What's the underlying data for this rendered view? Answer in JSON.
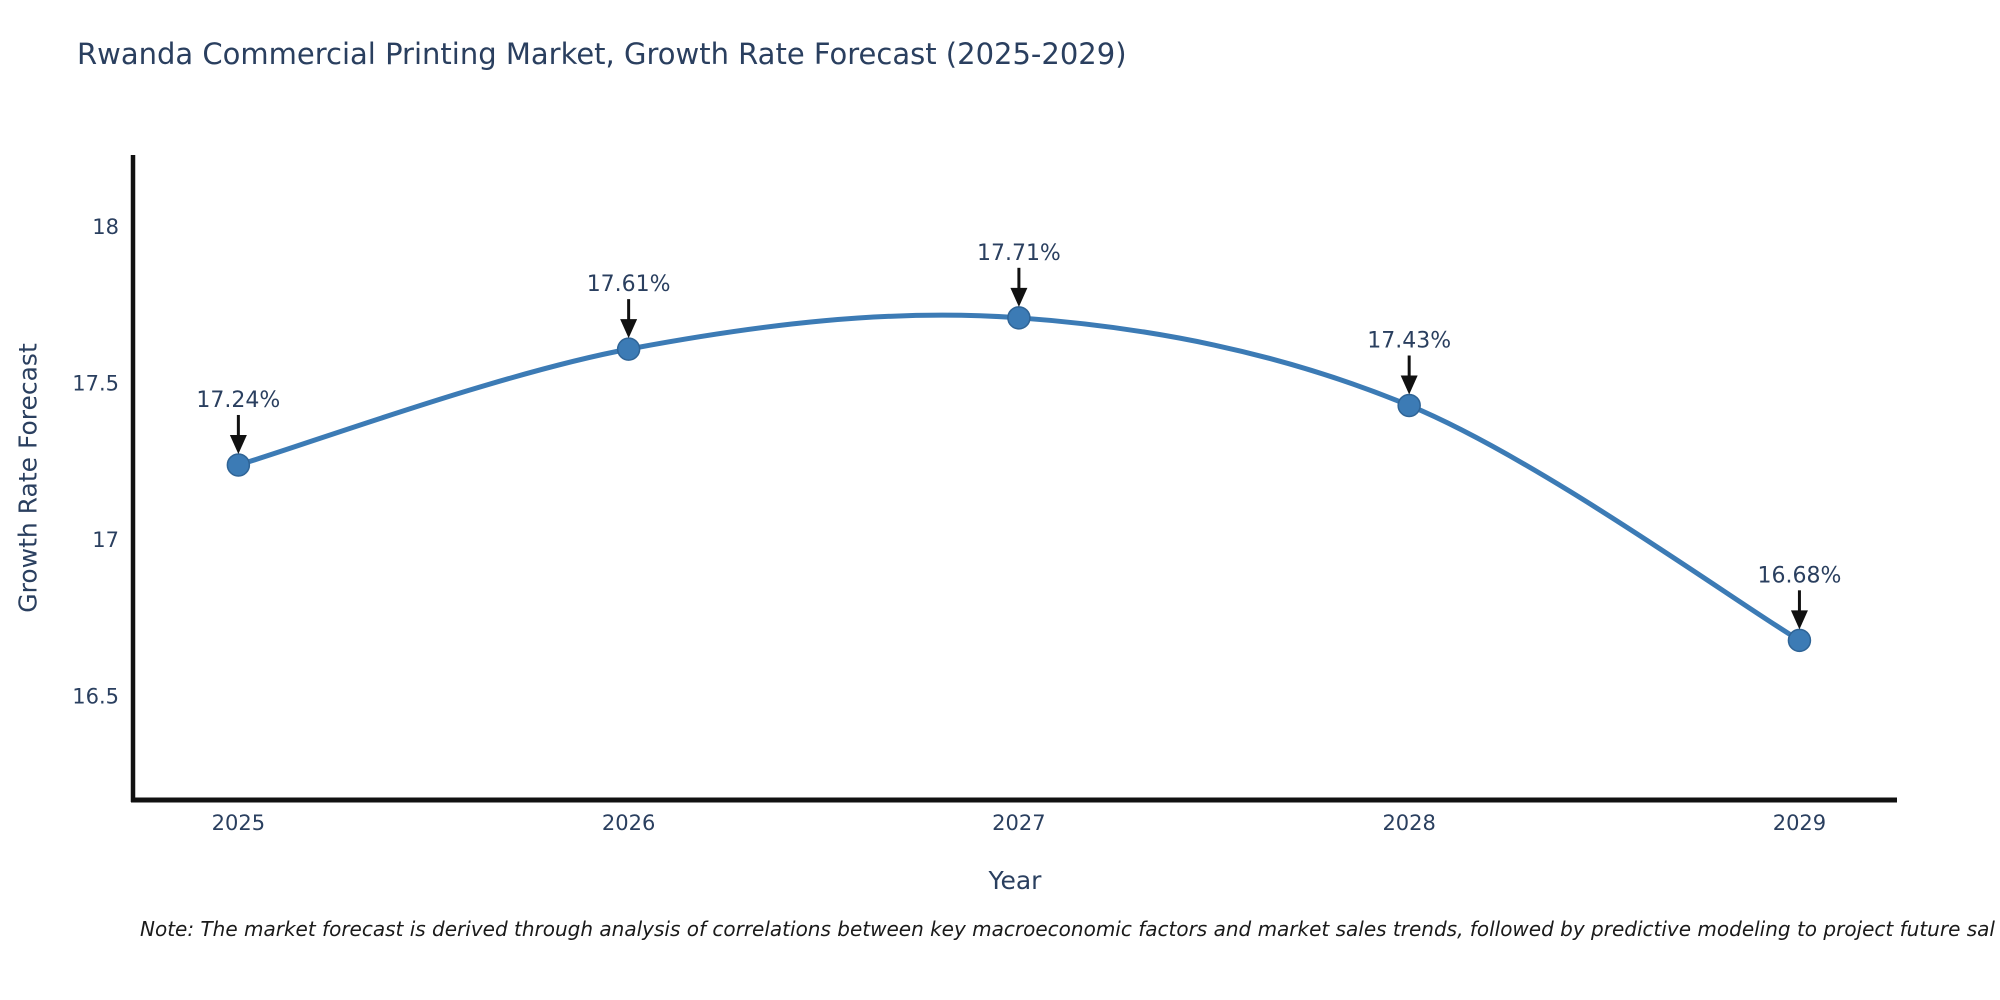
{
  "title": {
    "text": "Rwanda Commercial Printing Market, Growth Rate Forecast (2025-2029)"
  },
  "note": {
    "text": "Note: The market forecast is derived through analysis of correlations between key macroeconomic factors and market sales trends, followed by predictive modeling to project future sal"
  },
  "chart_data": {
    "type": "line",
    "title": "Rwanda Commercial Printing Market, Growth Rate Forecast (2025-2029)",
    "xlabel": "Year",
    "ylabel": "Growth Rate Forecast",
    "x": [
      2025,
      2026,
      2027,
      2028,
      2029
    ],
    "values": [
      17.24,
      17.61,
      17.71,
      17.43,
      16.68
    ],
    "point_labels": [
      "17.24%",
      "17.61%",
      "17.71%",
      "17.43%",
      "16.68%"
    ],
    "xtick_labels": [
      "2025",
      "2026",
      "2027",
      "2028",
      "2029"
    ],
    "ytick_values": [
      16.5,
      17,
      17.5,
      18
    ],
    "ytick_labels": [
      "16.5",
      "17",
      "17.5",
      "18"
    ],
    "xlim": [
      2024.73,
      2029.25
    ],
    "ylim": [
      16.17,
      18.23
    ],
    "grid": false,
    "legend": "none",
    "line_style": "spline",
    "markers": true
  },
  "colors": {
    "title_text": "#2a3f5f",
    "tick_label": "#2a3f5f",
    "annotation_text": "#2a3f5f",
    "axis_line": "#111111",
    "series_line": "#3c7bb5",
    "marker_fill": "#3c7bb5",
    "marker_stroke": "#2f6496",
    "arrow": "#111111"
  }
}
